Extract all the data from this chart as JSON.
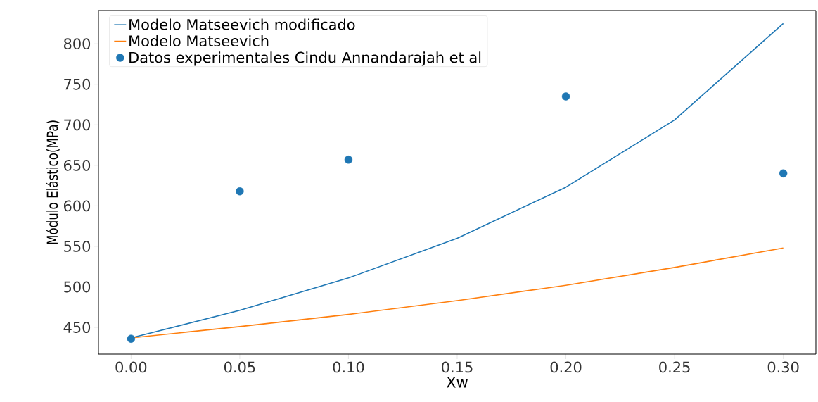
{
  "chart_data": {
    "type": "line",
    "xlabel": "Xw",
    "ylabel": "Módulo Elástico(MPa)",
    "xlim": [
      -0.015,
      0.315
    ],
    "ylim": [
      417,
      841
    ],
    "xticks": [
      {
        "value": 0,
        "label": "0.00"
      },
      0.05,
      {
        "value": 0.1,
        "label": "0.10"
      },
      0.15,
      {
        "value": 0.2,
        "label": "0.20"
      },
      0.25,
      {
        "value": 0.3,
        "label": "0.30"
      }
    ],
    "yticks": [
      450,
      500,
      550,
      600,
      650,
      700,
      750,
      800
    ],
    "legend": "top left",
    "grid": false,
    "series": [
      {
        "name": "Modelo Matseevich modificado",
        "marker": "none",
        "color": "#1f77b4",
        "x": [
          0,
          0.05,
          0.1,
          0.15,
          0.2,
          0.25,
          0.3
        ],
        "values": [
          437,
          471,
          511,
          560,
          623,
          706,
          825
        ]
      },
      {
        "name": "Modelo Matseevich",
        "marker": "none",
        "color": "#ff7f0e",
        "x": [
          0,
          0.05,
          0.1,
          0.15,
          0.2,
          0.25,
          0.3
        ],
        "values": [
          437,
          451,
          466,
          483,
          502,
          524,
          548
        ]
      },
      {
        "name": "Datos experimentales Cindu Annandarajah et al",
        "type": "scatter",
        "marker": "circle",
        "color": "#1f77b4",
        "x": [
          0,
          0.05,
          0.1,
          0.2,
          0.3
        ],
        "values": [
          436,
          618,
          657,
          735,
          640
        ]
      }
    ]
  }
}
